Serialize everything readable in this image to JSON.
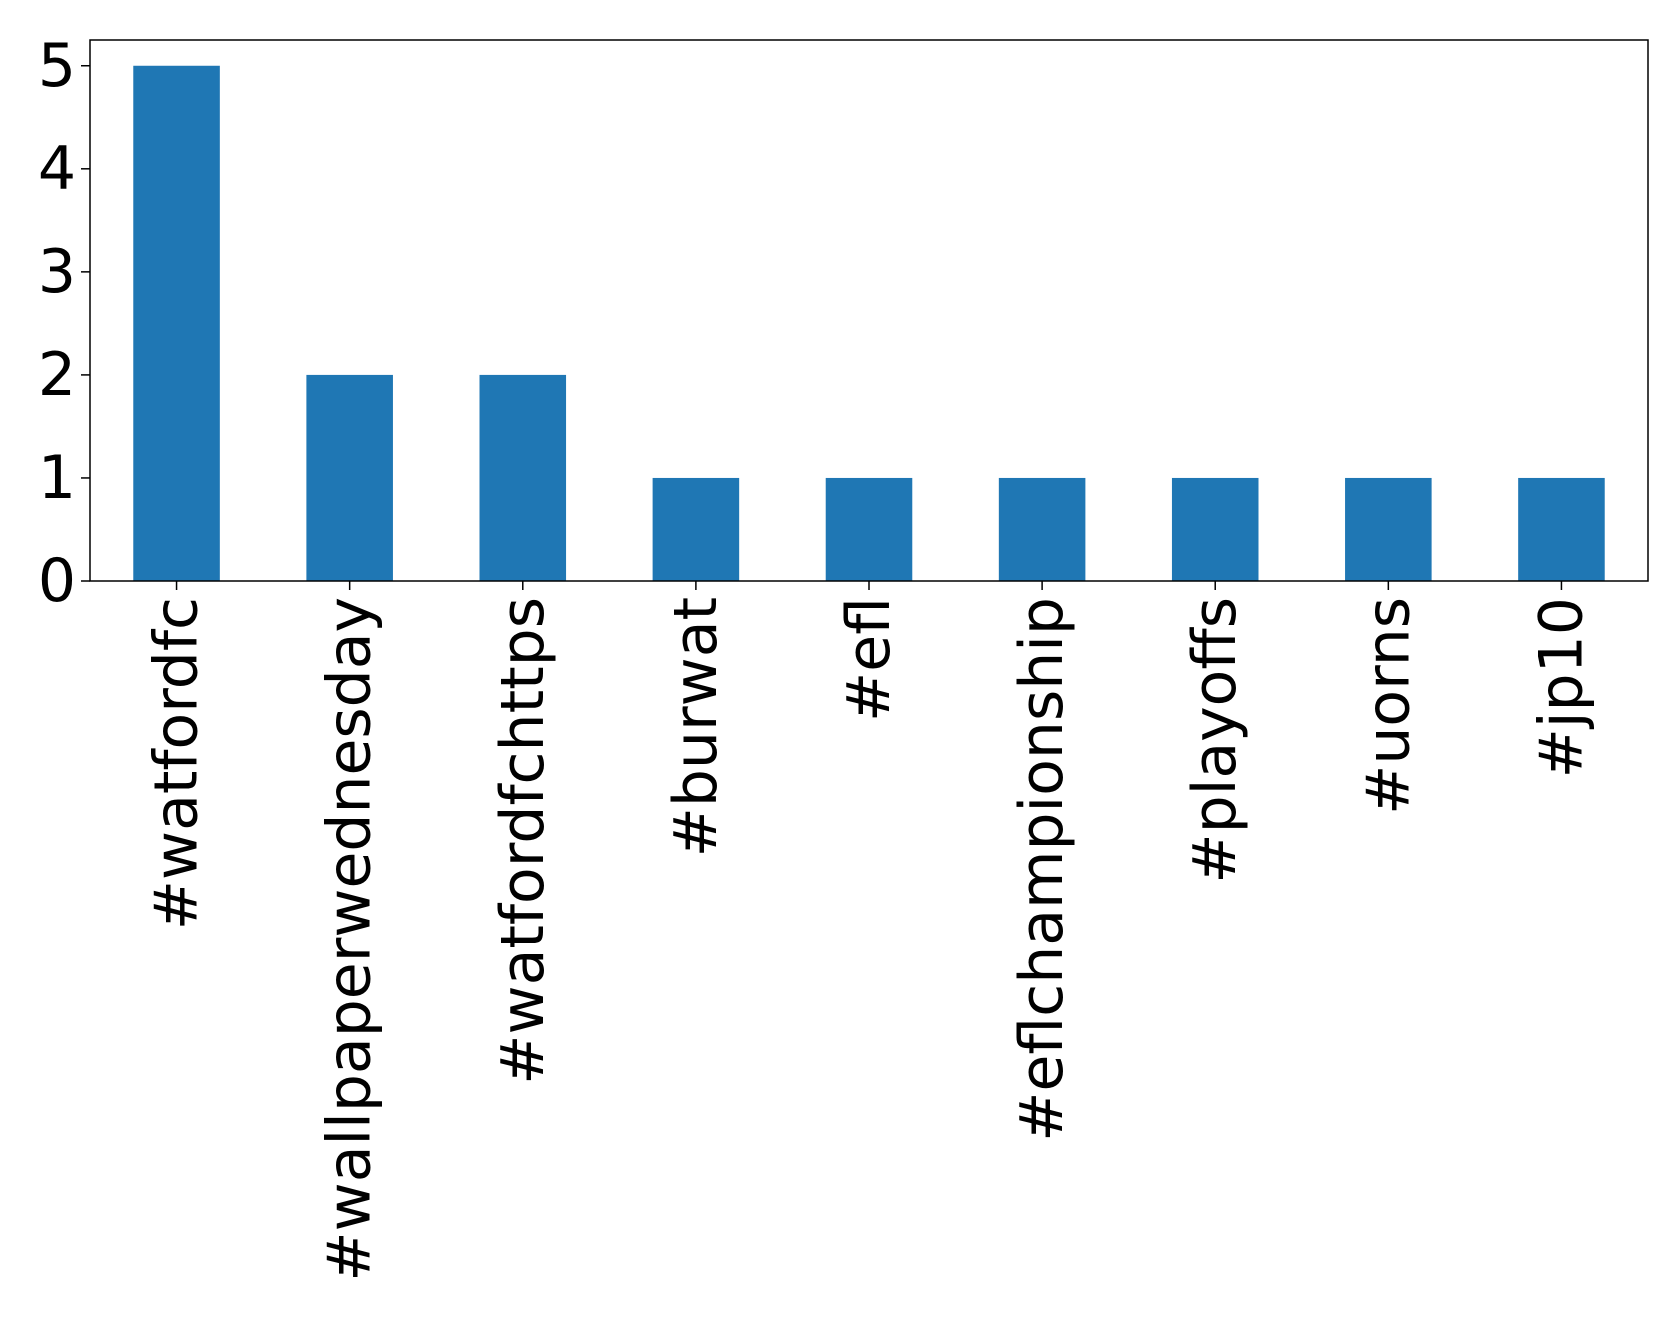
{
  "chart_data": {
    "type": "bar",
    "categories": [
      "#watfordfc",
      "#wallpaperwednesday",
      "#watfordfchttps",
      "#burwat",
      "#efl",
      "#eflchampionship",
      "#playoffs",
      "#uorns",
      "#jp10"
    ],
    "values": [
      5,
      2,
      2,
      1,
      1,
      1,
      1,
      1,
      1
    ],
    "color": "#1f77b4",
    "ylim": [
      0,
      5.25
    ],
    "yticks": [
      0,
      1,
      2,
      3,
      4,
      5
    ],
    "grid": false
  }
}
